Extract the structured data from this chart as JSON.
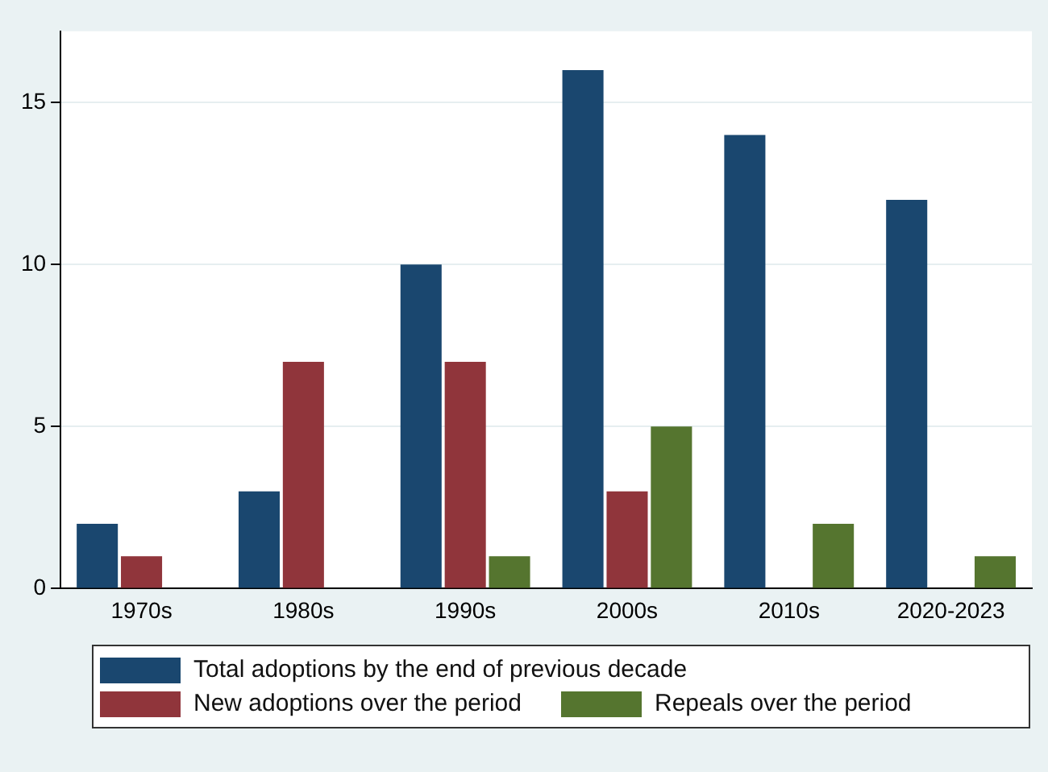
{
  "chart_data": {
    "type": "bar",
    "categories": [
      "1970s",
      "1980s",
      "1990s",
      "2000s",
      "2010s",
      "2020-2023"
    ],
    "series": [
      {
        "name": "Total adoptions by the end of previous decade",
        "color": "#1a476f",
        "values": [
          2,
          3,
          10,
          16,
          14,
          12
        ]
      },
      {
        "name": "New adoptions over the period",
        "color": "#90353b",
        "values": [
          1,
          7,
          7,
          3,
          0,
          0
        ]
      },
      {
        "name": "Repeals over the period",
        "color": "#55752f",
        "values": [
          0,
          0,
          1,
          5,
          2,
          1
        ]
      }
    ],
    "ylim": [
      0,
      17.2
    ],
    "yticks": [
      0,
      5,
      10,
      15
    ],
    "grid": "y",
    "legend": "bottom"
  }
}
